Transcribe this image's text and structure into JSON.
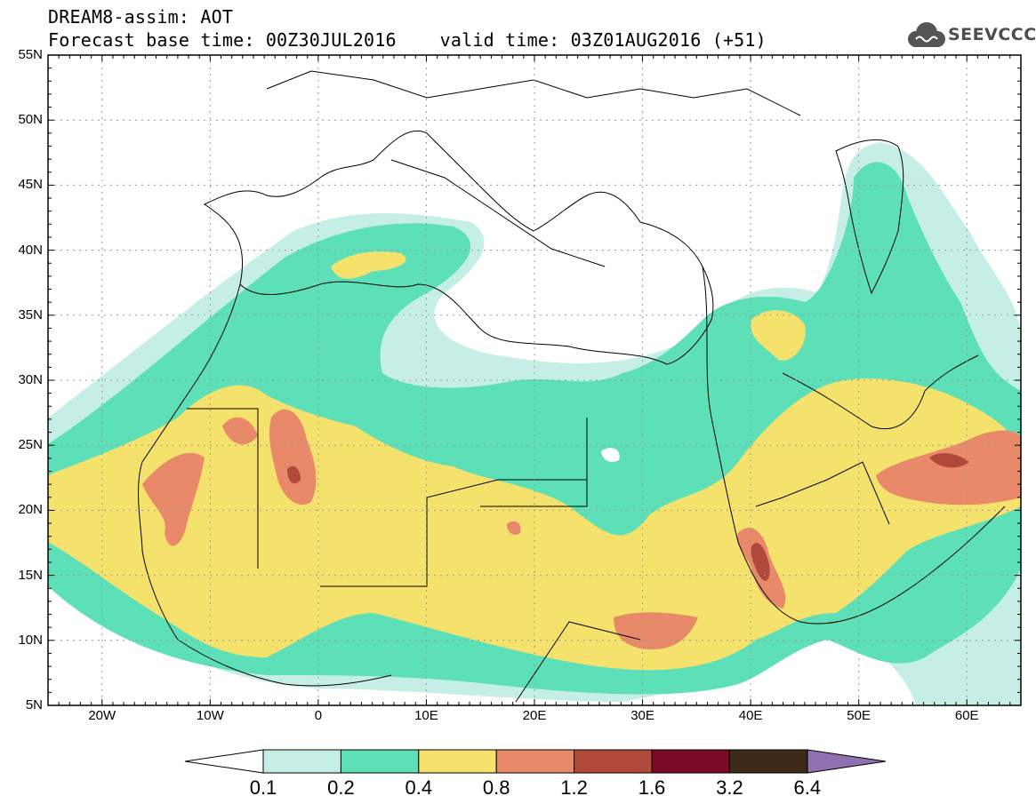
{
  "header": {
    "title_line1": "DREAM8-assim: AOT",
    "title_line2": "Forecast base time: 00Z30JUL2016    valid time: 03Z01AUG2016 (+51)",
    "logo_text": "SEEVCCC",
    "logo_icon": "cloud-icon"
  },
  "map": {
    "lat_labels": [
      "55N",
      "50N",
      "45N",
      "40N",
      "35N",
      "30N",
      "25N",
      "20N",
      "15N",
      "10N",
      "5N"
    ],
    "lon_labels": [
      "20W",
      "10W",
      "0",
      "10E",
      "20E",
      "30E",
      "40E",
      "50E",
      "60E"
    ],
    "lat_range": [
      5,
      55
    ],
    "lon_range": [
      -25,
      65
    ],
    "grid": "dotted"
  },
  "colorbar": {
    "labels": [
      "0.1",
      "0.2",
      "0.4",
      "0.8",
      "1.2",
      "1.6",
      "3.2",
      "6.4"
    ],
    "colors": [
      "#ffffff",
      "#c5eee6",
      "#5ddfb8",
      "#f5e26c",
      "#e8896a",
      "#b0493b",
      "#7a0a25",
      "#3e2a18",
      "#9070b0"
    ]
  },
  "legend_colors": {
    "aot_0_1": "#c5eee6",
    "aot_0_2": "#5ddfb8",
    "aot_0_4": "#f5e26c",
    "aot_0_8": "#e8896a",
    "aot_1_2": "#b0493b"
  }
}
